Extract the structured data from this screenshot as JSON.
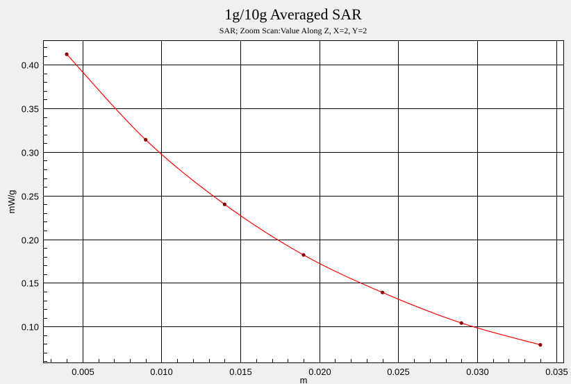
{
  "chart_data": {
    "type": "line",
    "title": "1g/10g Averaged SAR",
    "subtitle": "SAR; Zoom Scan:Value Along Z, X=2, Y=2",
    "xlabel": "m",
    "ylabel": "mW/g",
    "xlim": [
      0.0025,
      0.0355
    ],
    "ylim": [
      0.058,
      0.428
    ],
    "xticks": [
      0.005,
      0.01,
      0.015,
      0.02,
      0.025,
      0.03,
      0.035
    ],
    "xtick_labels": [
      "0.005",
      "0.010",
      "0.015",
      "0.020",
      "0.025",
      "0.030",
      "0.035"
    ],
    "yticks": [
      0.1,
      0.15,
      0.2,
      0.25,
      0.3,
      0.35,
      0.4
    ],
    "ytick_labels": [
      "0.10",
      "0.15",
      "0.20",
      "0.25",
      "0.30",
      "0.35",
      "0.40"
    ],
    "grid": true,
    "series": [
      {
        "color": "#ff0000",
        "marker_color": "#8b0000",
        "x": [
          0.004,
          0.009,
          0.014,
          0.019,
          0.024,
          0.029,
          0.034
        ],
        "y": [
          0.412,
          0.314,
          0.24,
          0.182,
          0.139,
          0.104,
          0.079
        ]
      }
    ]
  }
}
